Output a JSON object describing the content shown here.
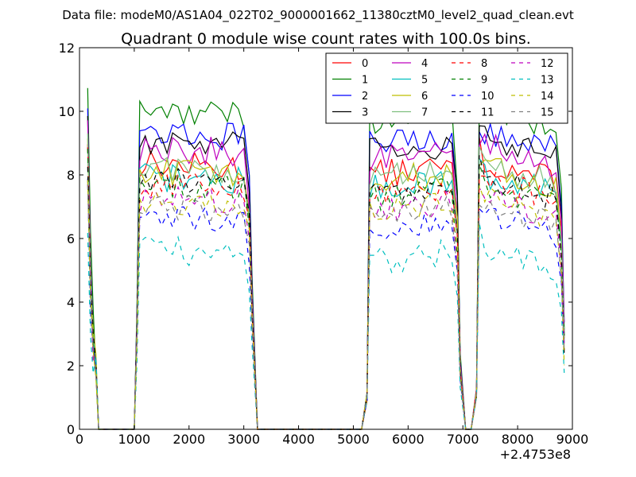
{
  "page": {
    "supertitle": "Data file: modeM0/AS1A04_022T02_9000001662_11380cztM0_level2_quad_clean.evt"
  },
  "chart_data": {
    "type": "line",
    "title": "Quadrant 0 module wise count rates with 100.0s bins.",
    "xlabel": "",
    "ylabel": "",
    "x_offset_label": "+2.4753e8",
    "xlim": [
      0,
      9000
    ],
    "ylim": [
      0,
      12
    ],
    "x_ticks": [
      0,
      1000,
      2000,
      3000,
      4000,
      5000,
      6000,
      7000,
      8000,
      9000
    ],
    "y_ticks": [
      0,
      2,
      4,
      6,
      8,
      10,
      12
    ],
    "legend_position": "top-right",
    "legend_columns": 4,
    "segments": [
      {
        "start": 150,
        "end": 350,
        "step": 50
      },
      {
        "start": 1050,
        "end": 3150,
        "step": 100
      },
      {
        "start": 5300,
        "end": 6950,
        "step": 100
      },
      {
        "start": 7300,
        "end": 8800,
        "step": 100
      }
    ],
    "zero_gaps": [
      {
        "start": 400,
        "end": 1000
      },
      {
        "start": 3250,
        "end": 5150
      },
      {
        "start": 7050,
        "end": 7150
      }
    ],
    "series": [
      {
        "name": "0",
        "color": "#ff0000",
        "dash": "solid",
        "level": 8.0
      },
      {
        "name": "1",
        "color": "#008000",
        "dash": "solid",
        "level": 9.7
      },
      {
        "name": "2",
        "color": "#0000ff",
        "dash": "solid",
        "level": 9.0
      },
      {
        "name": "3",
        "color": "#000000",
        "dash": "solid",
        "level": 8.7
      },
      {
        "name": "4",
        "color": "#bf00bf",
        "dash": "solid",
        "level": 8.5
      },
      {
        "name": "5",
        "color": "#00bfbf",
        "dash": "solid",
        "level": 7.6
      },
      {
        "name": "6",
        "color": "#bfbf00",
        "dash": "solid",
        "level": 7.8
      },
      {
        "name": "7",
        "color": "#7fbf7f",
        "dash": "solid",
        "level": 7.9
      },
      {
        "name": "8",
        "color": "#ff0000",
        "dash": "dashed",
        "level": 7.4
      },
      {
        "name": "9",
        "color": "#008000",
        "dash": "dashed",
        "level": 7.3
      },
      {
        "name": "10",
        "color": "#0000ff",
        "dash": "dashed",
        "level": 6.3
      },
      {
        "name": "11",
        "color": "#000000",
        "dash": "dashed",
        "level": 7.5
      },
      {
        "name": "12",
        "color": "#bf00bf",
        "dash": "dashed",
        "level": 6.9
      },
      {
        "name": "13",
        "color": "#00bfbf",
        "dash": "dashed",
        "level": 5.3
      },
      {
        "name": "14",
        "color": "#bfbf00",
        "dash": "dashed",
        "level": 6.9
      },
      {
        "name": "15",
        "color": "#808080",
        "dash": "dashed",
        "level": 6.7
      }
    ]
  }
}
